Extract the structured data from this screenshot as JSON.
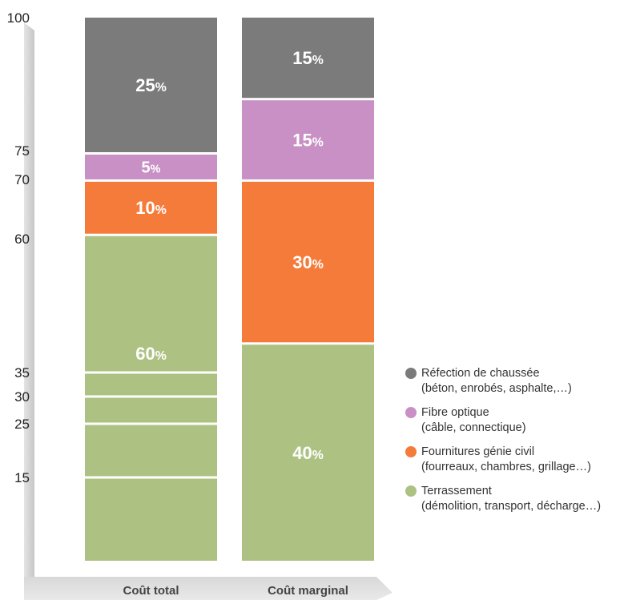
{
  "chart_data": {
    "type": "bar",
    "stacked": true,
    "categories": [
      "Coût total",
      "Coût marginal"
    ],
    "y_ticks": [
      "100",
      "75",
      "70",
      "60",
      "35",
      "30",
      "25",
      "15"
    ],
    "series": [
      {
        "name": "Terrassement",
        "description": "(démolition, transport, décharge…)",
        "color": "#adc282",
        "values": [
          60,
          40
        ],
        "labels": [
          "60%",
          "40%"
        ]
      },
      {
        "name": "Fournitures génie civil",
        "description": "(fourreaux, chambres, grillage…)",
        "color": "#f47b3a",
        "values": [
          10,
          30
        ],
        "labels": [
          "10%",
          "30%"
        ]
      },
      {
        "name": "Fibre optique",
        "description": "(câble, connectique)",
        "color": "#c890c4",
        "values": [
          5,
          15
        ],
        "labels": [
          "5%",
          "15%"
        ]
      },
      {
        "name": "Réfection de chaussée",
        "description": "(béton, enrobés, asphalte,…)",
        "color": "#7b7b7b",
        "values": [
          25,
          15
        ],
        "labels": [
          "25%",
          "15%"
        ]
      }
    ],
    "legend_position": "right",
    "legend_order": [
      3,
      2,
      1,
      0
    ]
  }
}
